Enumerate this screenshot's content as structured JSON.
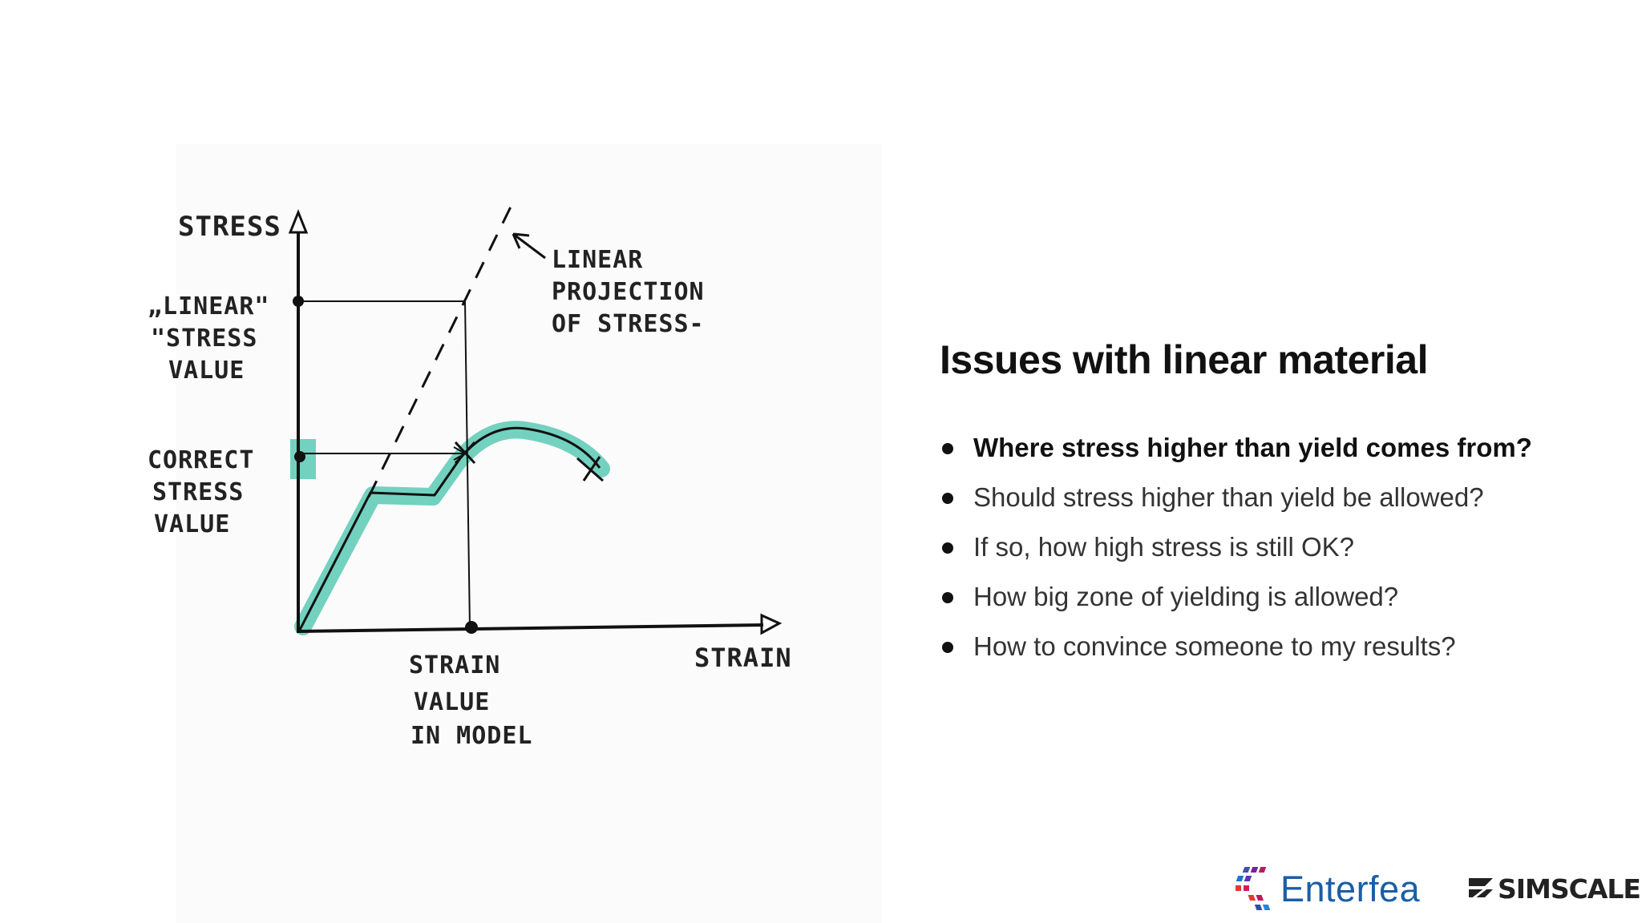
{
  "diagram": {
    "y_axis_label": "STRESS",
    "x_axis_label": "STRAIN",
    "linear_value_label": [
      "„LINEAR\"",
      "\"STRESS",
      "VALUE"
    ],
    "correct_value_label": [
      "CORRECT",
      "STRESS",
      "VALUE"
    ],
    "strain_model_label": [
      "STRAIN",
      "VALUE",
      "IN MODEL"
    ],
    "projection_label": [
      "LINEAR",
      "PROJECTION",
      "OF STRESS-"
    ],
    "highlight_color": "#5bc9b4"
  },
  "slide": {
    "title": "Issues with linear material",
    "bullets": [
      "Where stress higher than yield comes from?",
      "Should stress higher than yield be allowed?",
      "If so, how high stress is still OK?",
      "How big zone of yielding is allowed?",
      "How to convince someone to my results?"
    ]
  },
  "logos": {
    "enterfea": "Enterfea",
    "simscale": "SIMSCALE",
    "enterfea_color": "#1a5ea6"
  }
}
